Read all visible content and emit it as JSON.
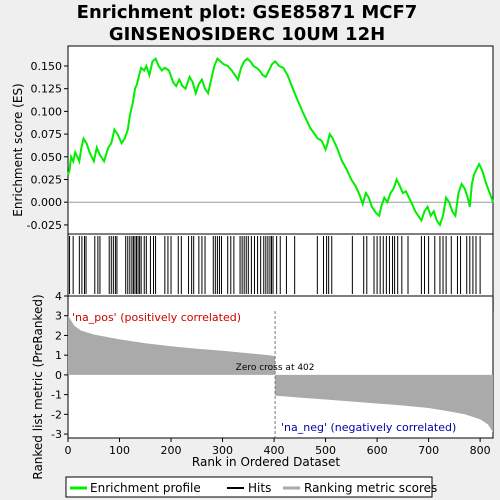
{
  "title_line1": "Enrichment plot: GSE85871 MCF7",
  "title_line2": "GINSENOSIDERC 10UM 12H",
  "ylabel_top": "Enrichment score (ES)",
  "ylabel_bottom": "Ranked list metric (PreRanked)",
  "xlabel": "Rank in Ordered Dataset",
  "label_pos": "'na_pos' (positively correlated)",
  "label_neg": "'na_neg' (negatively correlated)",
  "zero_cross_label": "Zero cross at 402",
  "legend": {
    "enrichment": "Enrichment profile",
    "hits": "Hits",
    "ranking": "Ranking metric scores"
  },
  "colors": {
    "enrichment": "#00ee00",
    "hits": "#000000",
    "ranking": "#aaaaaa",
    "pos_label": "#cc0000",
    "neg_label": "#0000aa",
    "heat_red": "#dd0000",
    "heat_blue": "#2200cc"
  },
  "chart_data": {
    "type": "line",
    "x_range": [
      0,
      825
    ],
    "x_ticks": [
      0,
      100,
      200,
      300,
      400,
      500,
      600,
      700,
      800
    ],
    "es_ylim": [
      -0.035,
      0.172
    ],
    "es_ticks": [
      -0.025,
      0.0,
      0.025,
      0.05,
      0.075,
      0.1,
      0.125,
      0.15
    ],
    "metric_ylim": [
      -3.2,
      4.0
    ],
    "metric_ticks": [
      -3,
      -2,
      -1,
      0,
      1,
      2,
      3,
      4
    ],
    "zero_cross": 402,
    "enrichment_profile": [
      [
        0,
        0.03
      ],
      [
        3,
        0.035
      ],
      [
        6,
        0.05
      ],
      [
        10,
        0.045
      ],
      [
        14,
        0.055
      ],
      [
        18,
        0.05
      ],
      [
        22,
        0.045
      ],
      [
        26,
        0.06
      ],
      [
        30,
        0.07
      ],
      [
        36,
        0.065
      ],
      [
        42,
        0.055
      ],
      [
        50,
        0.045
      ],
      [
        56,
        0.06
      ],
      [
        62,
        0.052
      ],
      [
        70,
        0.045
      ],
      [
        78,
        0.06
      ],
      [
        84,
        0.065
      ],
      [
        90,
        0.08
      ],
      [
        96,
        0.075
      ],
      [
        104,
        0.065
      ],
      [
        110,
        0.07
      ],
      [
        116,
        0.08
      ],
      [
        120,
        0.095
      ],
      [
        126,
        0.11
      ],
      [
        130,
        0.125
      ],
      [
        134,
        0.13
      ],
      [
        138,
        0.14
      ],
      [
        142,
        0.148
      ],
      [
        148,
        0.145
      ],
      [
        152,
        0.15
      ],
      [
        158,
        0.14
      ],
      [
        164,
        0.155
      ],
      [
        170,
        0.158
      ],
      [
        176,
        0.15
      ],
      [
        182,
        0.145
      ],
      [
        188,
        0.148
      ],
      [
        196,
        0.145
      ],
      [
        204,
        0.132
      ],
      [
        210,
        0.128
      ],
      [
        216,
        0.135
      ],
      [
        222,
        0.128
      ],
      [
        228,
        0.125
      ],
      [
        236,
        0.138
      ],
      [
        242,
        0.132
      ],
      [
        248,
        0.12
      ],
      [
        254,
        0.13
      ],
      [
        260,
        0.135
      ],
      [
        266,
        0.125
      ],
      [
        272,
        0.12
      ],
      [
        278,
        0.135
      ],
      [
        284,
        0.15
      ],
      [
        290,
        0.158
      ],
      [
        296,
        0.155
      ],
      [
        302,
        0.152
      ],
      [
        310,
        0.15
      ],
      [
        318,
        0.145
      ],
      [
        324,
        0.14
      ],
      [
        330,
        0.135
      ],
      [
        336,
        0.148
      ],
      [
        342,
        0.155
      ],
      [
        348,
        0.158
      ],
      [
        354,
        0.155
      ],
      [
        360,
        0.15
      ],
      [
        366,
        0.148
      ],
      [
        372,
        0.145
      ],
      [
        378,
        0.14
      ],
      [
        384,
        0.138
      ],
      [
        390,
        0.145
      ],
      [
        396,
        0.152
      ],
      [
        402,
        0.155
      ],
      [
        410,
        0.15
      ],
      [
        418,
        0.148
      ],
      [
        426,
        0.14
      ],
      [
        440,
        0.12
      ],
      [
        455,
        0.1
      ],
      [
        470,
        0.082
      ],
      [
        485,
        0.07
      ],
      [
        492,
        0.068
      ],
      [
        500,
        0.058
      ],
      [
        504,
        0.065
      ],
      [
        508,
        0.075
      ],
      [
        514,
        0.07
      ],
      [
        522,
        0.06
      ],
      [
        532,
        0.045
      ],
      [
        542,
        0.035
      ],
      [
        550,
        0.025
      ],
      [
        558,
        0.018
      ],
      [
        566,
        0.008
      ],
      [
        572,
        -0.002
      ],
      [
        578,
        0.01
      ],
      [
        584,
        0.005
      ],
      [
        590,
        -0.005
      ],
      [
        598,
        -0.012
      ],
      [
        604,
        -0.015
      ],
      [
        608,
        -0.005
      ],
      [
        614,
        0.005
      ],
      [
        620,
        0.0
      ],
      [
        626,
        0.01
      ],
      [
        632,
        0.015
      ],
      [
        638,
        0.025
      ],
      [
        644,
        0.018
      ],
      [
        650,
        0.01
      ],
      [
        656,
        0.012
      ],
      [
        662,
        0.005
      ],
      [
        668,
        -0.002
      ],
      [
        674,
        -0.01
      ],
      [
        680,
        -0.015
      ],
      [
        686,
        -0.02
      ],
      [
        692,
        -0.01
      ],
      [
        698,
        -0.005
      ],
      [
        704,
        -0.015
      ],
      [
        710,
        -0.01
      ],
      [
        716,
        -0.02
      ],
      [
        722,
        -0.025
      ],
      [
        728,
        -0.015
      ],
      [
        734,
        0.005
      ],
      [
        740,
        0.0
      ],
      [
        746,
        -0.01
      ],
      [
        752,
        -0.015
      ],
      [
        758,
        0.01
      ],
      [
        764,
        0.02
      ],
      [
        770,
        0.015
      ],
      [
        776,
        0.005
      ],
      [
        780,
        -0.005
      ],
      [
        784,
        0.02
      ],
      [
        788,
        0.03
      ],
      [
        792,
        0.035
      ],
      [
        798,
        0.042
      ],
      [
        804,
        0.035
      ],
      [
        812,
        0.02
      ],
      [
        820,
        0.008
      ],
      [
        825,
        0.0
      ]
    ],
    "hits": [
      3,
      10,
      22,
      27,
      32,
      35,
      52,
      58,
      62,
      80,
      84,
      88,
      92,
      95,
      112,
      116,
      120,
      124,
      127,
      130,
      133,
      136,
      139,
      142,
      148,
      152,
      160,
      166,
      170,
      188,
      194,
      200,
      214,
      220,
      234,
      240,
      244,
      254,
      260,
      266,
      282,
      286,
      290,
      294,
      298,
      310,
      316,
      322,
      334,
      338,
      342,
      346,
      350,
      356,
      362,
      368,
      374,
      380,
      384,
      388,
      392,
      395,
      398,
      405,
      412,
      424,
      440,
      484,
      496,
      502,
      506,
      512,
      552,
      574,
      580,
      594,
      600,
      606,
      612,
      618,
      624,
      630,
      634,
      640,
      648,
      660,
      686,
      692,
      700,
      712,
      722,
      728,
      734,
      744,
      756,
      762,
      774,
      780,
      786,
      792,
      800
    ],
    "metric_profile": [
      [
        0,
        3.0
      ],
      [
        5,
        2.8
      ],
      [
        12,
        2.5
      ],
      [
        25,
        2.25
      ],
      [
        50,
        2.05
      ],
      [
        100,
        1.8
      ],
      [
        150,
        1.6
      ],
      [
        200,
        1.45
      ],
      [
        250,
        1.33
      ],
      [
        300,
        1.22
      ],
      [
        350,
        1.1
      ],
      [
        390,
        1.0
      ],
      [
        402,
        0.95
      ],
      [
        402,
        -1.05
      ],
      [
        450,
        -1.15
      ],
      [
        500,
        -1.25
      ],
      [
        550,
        -1.35
      ],
      [
        600,
        -1.45
      ],
      [
        650,
        -1.55
      ],
      [
        700,
        -1.68
      ],
      [
        740,
        -1.85
      ],
      [
        770,
        -2.0
      ],
      [
        800,
        -2.25
      ],
      [
        815,
        -2.5
      ],
      [
        825,
        -2.9
      ]
    ]
  }
}
